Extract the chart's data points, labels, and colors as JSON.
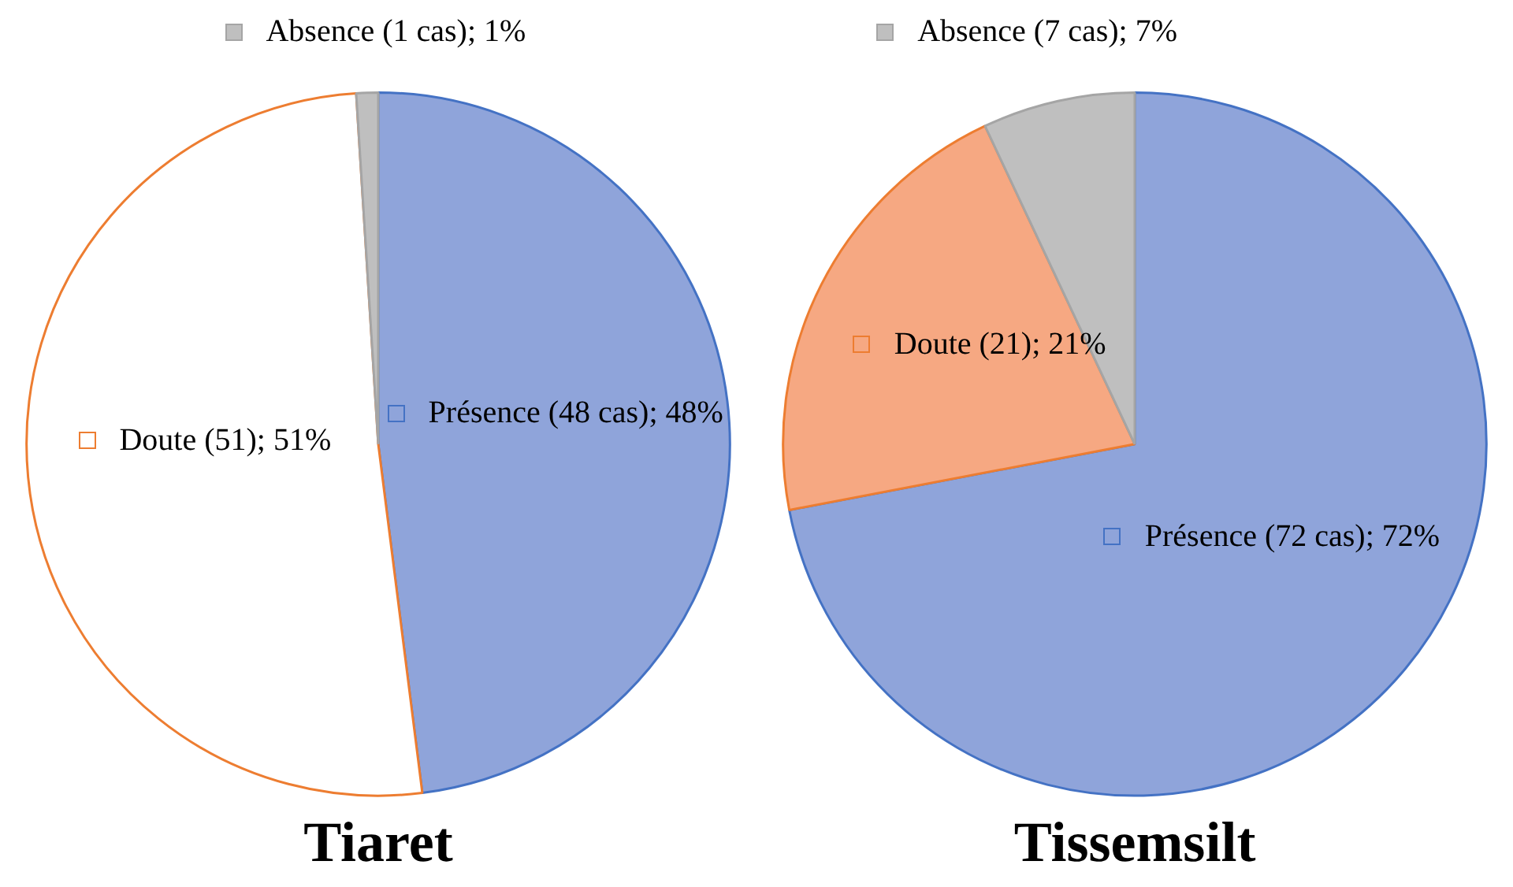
{
  "chart_data": [
    {
      "type": "pie",
      "title": "Tiaret",
      "categories": [
        "Présence (48 cas)",
        "Doute (51)",
        "Absence (1 cas)"
      ],
      "values": [
        48,
        51,
        1
      ],
      "colors": [
        "#8fa4da",
        "#ffffff",
        "#bfbfbf"
      ],
      "value_labels": [
        "48%",
        "51%",
        "1%"
      ],
      "legend": "top"
    },
    {
      "type": "pie",
      "title": "Tissemsilt",
      "categories": [
        "Présence (72 cas)",
        "Doute (21)",
        "Absence (7 cas)"
      ],
      "values": [
        72,
        21,
        7
      ],
      "colors": [
        "#8fa4da",
        "#f6a882",
        "#bfbfbf"
      ],
      "value_labels": [
        "72%",
        "21%",
        "7%"
      ],
      "legend": "top"
    }
  ]
}
